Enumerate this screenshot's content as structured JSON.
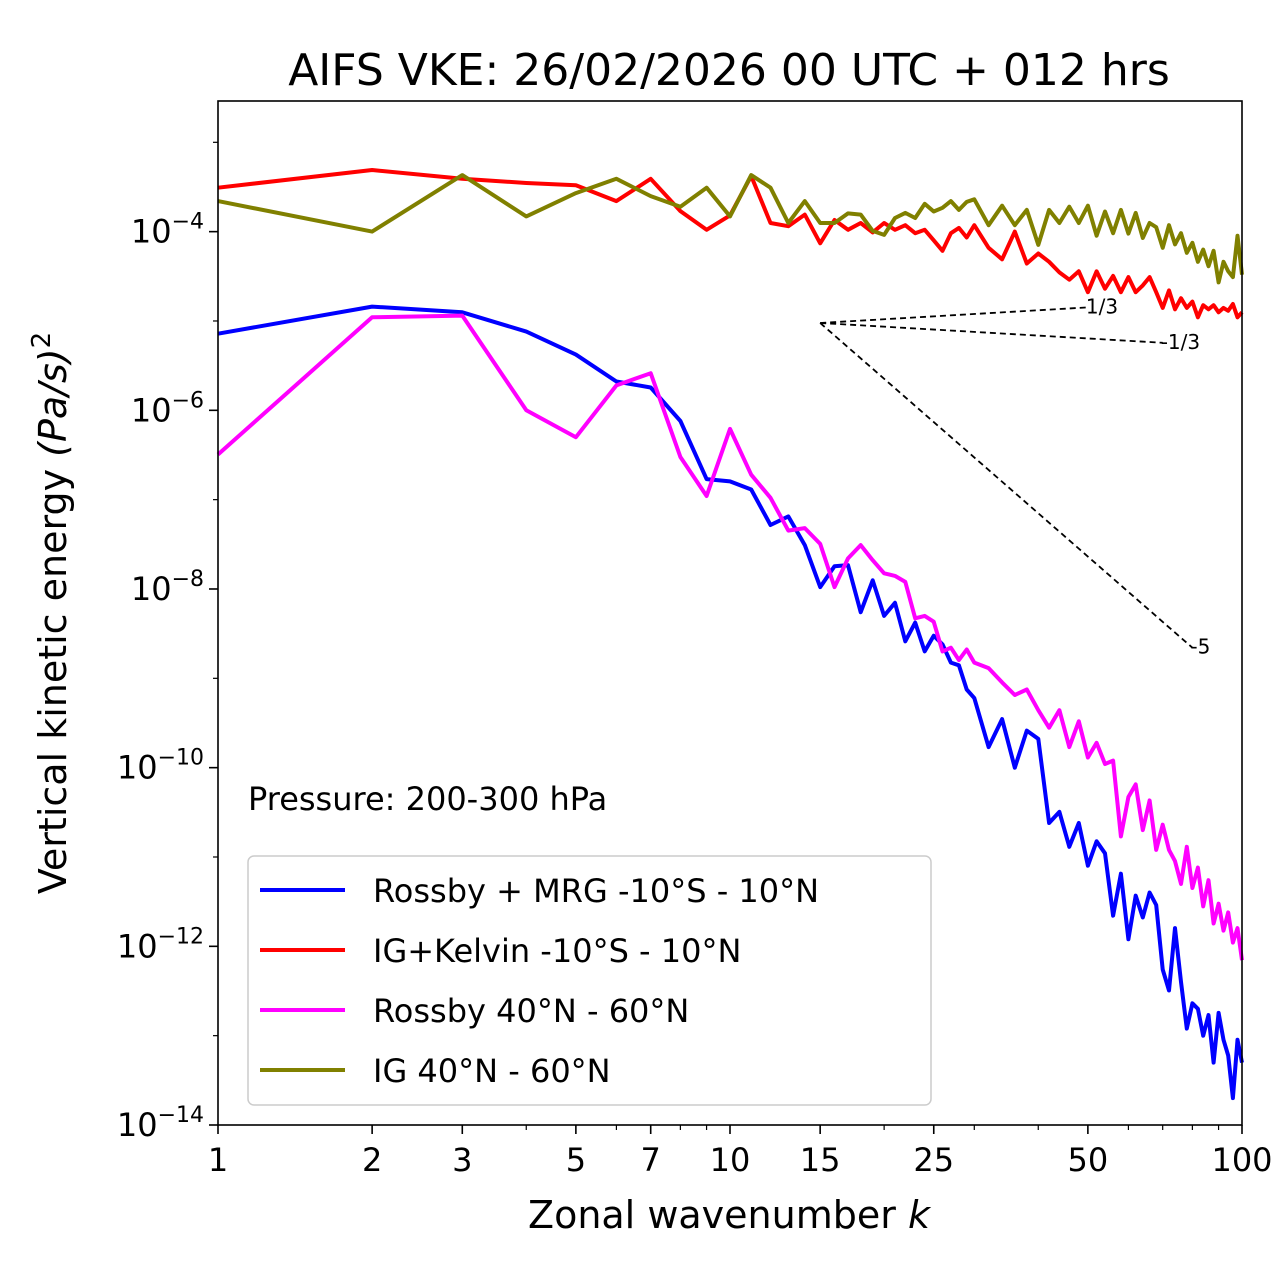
{
  "colors": {
    "rossby_mrg": "#0000ff",
    "ig_kelvin": "#ff0000",
    "rossby_midlat": "#ff00ff",
    "ig_midlat": "#808000",
    "ref_lines": "#000000"
  },
  "chart_data": {
    "type": "line",
    "title": "AIFS VKE: 26/02/2026 00 UTC + 012 hrs",
    "xlabel": "Zonal wavenumber k",
    "xlabel_text": "Zonal wavenumber ",
    "xlabel_var": "k",
    "ylabel_main": "Vertical kinetic energy ",
    "ylabel_units": "(Pa/s)",
    "ylabel_exp": "2",
    "xscale": "log",
    "yscale": "log",
    "xlim": [
      1,
      100
    ],
    "ylim": [
      1e-14,
      0.0029
    ],
    "xticks": [
      1,
      2,
      3,
      5,
      7,
      10,
      15,
      25,
      50,
      100
    ],
    "xtick_labels": [
      "1",
      "2",
      "3",
      "5",
      "7",
      "10",
      "15",
      "25",
      "50",
      "100"
    ],
    "yticks": [
      {
        "value": -4,
        "base": "10",
        "exp": "−4"
      },
      {
        "value": -6,
        "base": "10",
        "exp": "−6"
      },
      {
        "value": -8,
        "base": "10",
        "exp": "−8"
      },
      {
        "value": -10,
        "base": "10",
        "exp": "−10"
      },
      {
        "value": -12,
        "base": "10",
        "exp": "−12"
      },
      {
        "value": -14,
        "base": "10",
        "exp": "−14"
      }
    ],
    "annotation": "Pressure: 200-300 hPa",
    "legend_position": "lower-left",
    "series": [
      {
        "name": "Rossby + MRG -10°S - 10°N",
        "color": "#0000ff",
        "x": [
          1,
          2,
          3,
          4,
          5,
          6,
          7,
          8,
          9,
          10,
          11,
          12,
          13,
          14,
          15,
          16,
          17,
          18,
          19,
          20,
          21,
          22,
          23,
          24,
          25,
          26,
          27,
          28,
          29,
          30,
          32,
          34,
          36,
          38,
          40,
          42,
          44,
          46,
          48,
          50,
          52,
          54,
          56,
          58,
          60,
          62,
          64,
          66,
          68,
          70,
          72,
          74,
          76,
          78,
          80,
          82,
          84,
          86,
          88,
          90,
          92,
          94,
          96,
          98,
          100
        ],
        "y": [
          7.2e-06,
          1.45e-05,
          1.25e-05,
          7.6e-06,
          4.2e-06,
          2.1e-06,
          1.8e-06,
          7.6e-07,
          1.7e-07,
          1.6e-07,
          1.3e-07,
          5.2e-08,
          6.5e-08,
          3.1e-08,
          1.05e-08,
          1.8e-08,
          1.85e-08,
          5.5e-09,
          1.25e-08,
          5e-09,
          7e-09,
          2.6e-09,
          4.2e-09,
          2e-09,
          3e-09,
          2.4e-09,
          1.5e-09,
          1.4e-09,
          7.5e-10,
          6e-10,
          1.7e-10,
          3.5e-10,
          1e-10,
          2.6e-10,
          2.1e-10,
          2.4e-11,
          3.2e-11,
          1.3e-11,
          2.4e-11,
          8e-12,
          1.5e-11,
          1.1e-11,
          2.2e-12,
          6.5e-12,
          1.2e-12,
          3.7e-12,
          2.1e-12,
          4e-12,
          2.9e-12,
          5.5e-13,
          3.2e-13,
          1.6e-12,
          4e-13,
          1.2e-13,
          2.3e-13,
          2e-13,
          1e-13,
          1.7e-13,
          5e-14,
          1.8e-13,
          9e-14,
          6e-14,
          2e-14,
          9e-14,
          5e-14
        ]
      },
      {
        "name": "IG+Kelvin -10°S - 10°N",
        "color": "#ff0000",
        "x": [
          1,
          2,
          3,
          4,
          5,
          6,
          7,
          8,
          9,
          10,
          11,
          12,
          13,
          14,
          15,
          16,
          17,
          18,
          19,
          20,
          21,
          22,
          23,
          24,
          25,
          26,
          27,
          28,
          29,
          30,
          32,
          34,
          36,
          38,
          40,
          42,
          44,
          46,
          48,
          50,
          52,
          54,
          56,
          58,
          60,
          62,
          64,
          66,
          68,
          70,
          72,
          74,
          76,
          78,
          80,
          82,
          84,
          86,
          88,
          90,
          92,
          94,
          96,
          98,
          100
        ],
        "y": [
          0.00031,
          0.00049,
          0.00039,
          0.00035,
          0.00033,
          0.00022,
          0.00039,
          0.00017,
          0.000105,
          0.000152,
          0.00042,
          0.000125,
          0.000115,
          0.000155,
          7.4e-05,
          0.000135,
          0.000105,
          0.000125,
          9.8e-05,
          0.000125,
          0.000105,
          0.000118,
          9.6e-05,
          0.000105,
          8e-05,
          6.1e-05,
          9.6e-05,
          0.00011,
          8.6e-05,
          0.000118,
          6.6e-05,
          4.9e-05,
          0.0001,
          4.4e-05,
          5.7e-05,
          4.6e-05,
          3.5e-05,
          2.9e-05,
          3.6e-05,
          2.1e-05,
          3.6e-05,
          2.3e-05,
          3.2e-05,
          2.1e-05,
          3.1e-05,
          2.1e-05,
          2.5e-05,
          3.1e-05,
          2.1e-05,
          1.4e-05,
          2.2e-05,
          1.35e-05,
          1.8e-05,
          1.4e-05,
          1.65e-05,
          1.1e-05,
          1.5e-05,
          1.35e-05,
          1.5e-05,
          1.25e-05,
          1.4e-05,
          1.3e-05,
          1.55e-05,
          1.1e-05,
          1.25e-05
        ]
      },
      {
        "name": "Rossby 40°N - 60°N",
        "color": "#ff00ff",
        "x": [
          1,
          2,
          3,
          4,
          5,
          6,
          7,
          8,
          9,
          10,
          11,
          12,
          13,
          14,
          15,
          16,
          17,
          18,
          19,
          20,
          21,
          22,
          23,
          24,
          25,
          26,
          27,
          28,
          29,
          30,
          32,
          34,
          36,
          38,
          40,
          42,
          44,
          46,
          48,
          50,
          52,
          54,
          56,
          58,
          60,
          62,
          64,
          66,
          68,
          70,
          72,
          74,
          76,
          78,
          80,
          82,
          84,
          86,
          88,
          90,
          92,
          94,
          96,
          98,
          100
        ],
        "y": [
          3.2e-07,
          1.1e-05,
          1.15e-05,
          1e-06,
          5e-07,
          1.9e-06,
          2.6e-06,
          3e-07,
          1.1e-07,
          6.2e-07,
          1.9e-07,
          1.05e-07,
          4.5e-08,
          4.8e-08,
          3.2e-08,
          1.05e-08,
          2.2e-08,
          3.1e-08,
          2.1e-08,
          1.5e-08,
          1.4e-08,
          1.2e-08,
          4.7e-09,
          5e-09,
          4.3e-09,
          2e-09,
          2.2e-09,
          1.6e-09,
          2.1e-09,
          1.5e-09,
          1.3e-09,
          9e-10,
          6.5e-10,
          7.5e-10,
          4.4e-10,
          2.8e-10,
          4.4e-10,
          1.7e-10,
          3.3e-10,
          1.3e-10,
          1.9e-10,
          1.1e-10,
          1.2e-10,
          1.7e-11,
          4.7e-11,
          6.5e-11,
          2e-11,
          4.3e-11,
          1.2e-11,
          2.3e-11,
          1.2e-11,
          9e-12,
          5e-12,
          1.3e-11,
          4.5e-12,
          7.6e-12,
          2.8e-12,
          5.5e-12,
          1.8e-12,
          3e-12,
          1.5e-12,
          2.4e-12,
          1.1e-12,
          1.6e-12,
          7e-13
        ]
      },
      {
        "name": "IG 40°N - 60°N",
        "color": "#808000",
        "x": [
          1,
          2,
          3,
          4,
          5,
          6,
          7,
          8,
          9,
          10,
          11,
          12,
          13,
          14,
          15,
          16,
          17,
          18,
          19,
          20,
          21,
          22,
          23,
          24,
          25,
          26,
          27,
          28,
          29,
          30,
          32,
          34,
          36,
          38,
          40,
          42,
          44,
          46,
          48,
          50,
          52,
          54,
          56,
          58,
          60,
          62,
          64,
          66,
          68,
          70,
          72,
          74,
          76,
          78,
          80,
          82,
          84,
          86,
          88,
          90,
          92,
          94,
          96,
          98,
          100
        ],
        "y": [
          0.00022,
          0.0001,
          0.00043,
          0.000148,
          0.00027,
          0.00039,
          0.00025,
          0.00019,
          0.00031,
          0.000148,
          0.00043,
          0.00031,
          0.000125,
          0.00022,
          0.000125,
          0.000125,
          0.00016,
          0.000155,
          0.000102,
          9.2e-05,
          0.000142,
          0.000162,
          0.000142,
          0.000205,
          0.000168,
          0.000185,
          0.00022,
          0.000175,
          0.000215,
          0.00023,
          0.000118,
          0.000195,
          0.000118,
          0.000175,
          7.1e-05,
          0.000175,
          0.000125,
          0.00019,
          0.000125,
          0.000195,
          9e-05,
          0.000168,
          9.6e-05,
          0.000175,
          9.5e-05,
          0.000162,
          8.5e-05,
          0.000125,
          0.000112,
          6.6e-05,
          0.000118,
          7.2e-05,
          9.6e-05,
          5.8e-05,
          7.5e-05,
          4.6e-05,
          6.3e-05,
          4.1e-05,
          6.1e-05,
          2.7e-05,
          4.6e-05,
          3.6e-05,
          3.1e-05,
          9e-05,
          3.3e-05
        ]
      }
    ],
    "reference_lines": [
      {
        "label": "1/3",
        "slope": 0.3333,
        "x": [
          15,
          50
        ],
        "y": [
          9.5e-06,
          1.42e-05
        ]
      },
      {
        "label": "-1/3",
        "slope": -0.3333,
        "x": [
          15,
          70
        ],
        "y": [
          9.5e-06,
          5.7e-06
        ]
      },
      {
        "label": "-5",
        "slope": -5,
        "x": [
          15,
          80
        ],
        "y": [
          9.5e-06,
          2.2e-09
        ]
      }
    ]
  }
}
